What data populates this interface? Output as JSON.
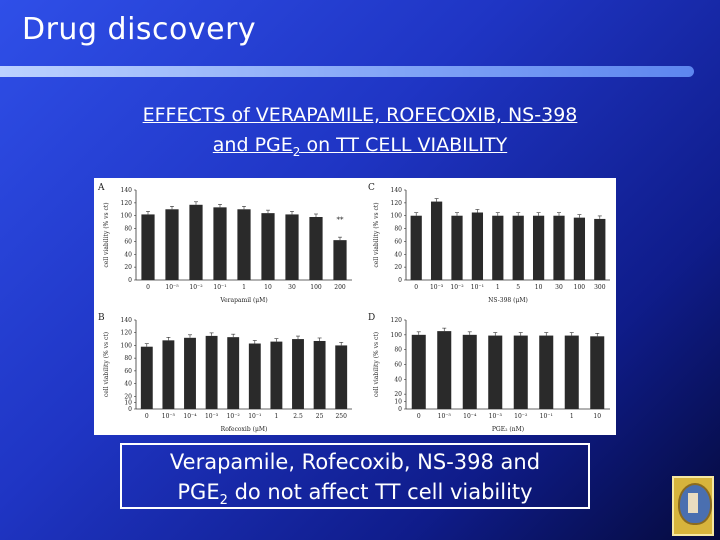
{
  "slide": {
    "title": "Drug discovery",
    "heading_line1": "EFFECTS of VERAPAMILE, ROFECOXIB, NS-398",
    "heading_line2_a": "and PGE",
    "heading_line2_sub": "2",
    "heading_line2_b": " on TT CELL VIABILITY",
    "caption_line1": "Verapamile, Rofecoxib, NS-398 and",
    "caption_line2_a": "PGE",
    "caption_line2_sub": "2",
    "caption_line2_b": " do not affect TT cell viability"
  },
  "chart_data": [
    {
      "type": "bar",
      "panel_label": "A",
      "ylabel": "cell viability (% vs ct)",
      "xlabel": "Verapamil (μM)",
      "yticks": [
        0,
        20,
        40,
        60,
        80,
        100,
        120,
        140
      ],
      "ylim": [
        0,
        140
      ],
      "categories": [
        "0",
        "10⁻⁵",
        "10⁻²",
        "10⁻¹",
        "1",
        "10",
        "30",
        "100",
        "200"
      ],
      "values": [
        102,
        110,
        117,
        113,
        110,
        104,
        102,
        98,
        62
      ],
      "annotations": [
        {
          "category_index": 8,
          "text": "**"
        }
      ]
    },
    {
      "type": "bar",
      "panel_label": "C",
      "ylabel": "cell viability (% vs ct)",
      "xlabel": "NS-398 (μM)",
      "yticks": [
        0,
        20,
        40,
        60,
        80,
        100,
        120,
        140
      ],
      "ylim": [
        0,
        140
      ],
      "categories": [
        "0",
        "10⁻³",
        "10⁻²",
        "10⁻¹",
        "1",
        "5",
        "10",
        "30",
        "100",
        "300"
      ],
      "values": [
        100,
        122,
        100,
        105,
        100,
        100,
        100,
        100,
        97,
        95
      ]
    },
    {
      "type": "bar",
      "panel_label": "B",
      "ylabel": "cell viability (% vs ct)",
      "xlabel": "Rofecoxib (μM)",
      "yticks": [
        0,
        10,
        20,
        40,
        60,
        80,
        100,
        120,
        140
      ],
      "ylim": [
        0,
        140
      ],
      "categories": [
        "0",
        "10⁻⁵",
        "10⁻⁴",
        "10⁻³",
        "10⁻²",
        "10⁻¹",
        "1",
        "2.5",
        "25",
        "250"
      ],
      "values": [
        98,
        108,
        112,
        115,
        113,
        103,
        106,
        110,
        107,
        100
      ]
    },
    {
      "type": "bar",
      "panel_label": "D",
      "ylabel": "cell viability (% vs ct)",
      "xlabel": "PGE₂ (nM)",
      "yticks": [
        0,
        10,
        20,
        40,
        60,
        80,
        100,
        120
      ],
      "ylim": [
        0,
        120
      ],
      "categories": [
        "0",
        "10⁻⁵",
        "10⁻⁴",
        "10⁻³",
        "10⁻²",
        "10⁻¹",
        "1",
        "10"
      ],
      "values": [
        100,
        105,
        100,
        99,
        99,
        99,
        99,
        98
      ]
    }
  ]
}
